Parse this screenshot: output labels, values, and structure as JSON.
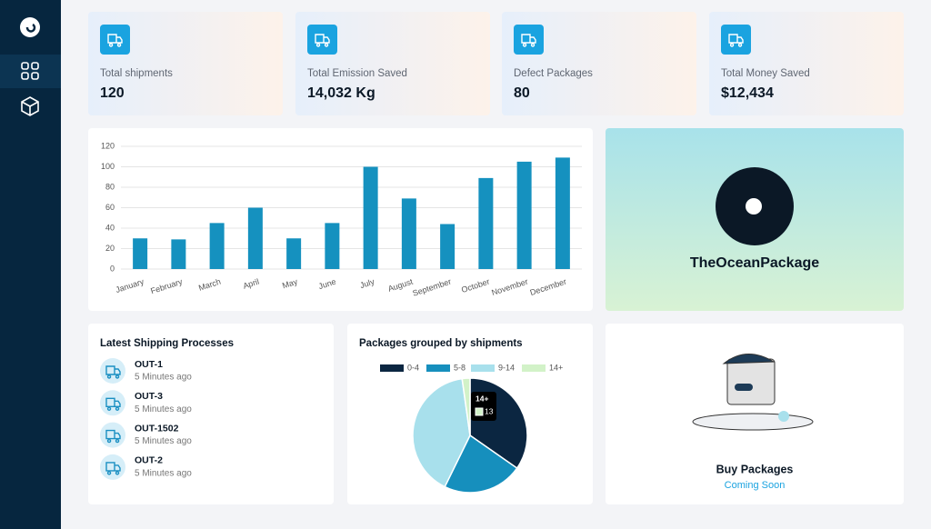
{
  "stats": [
    {
      "label": "Total shipments",
      "value": "120"
    },
    {
      "label": "Total Emission Saved",
      "value": "14,032 Kg"
    },
    {
      "label": "Defect Packages",
      "value": "80"
    },
    {
      "label": "Total Money Saved",
      "value": "$12,434"
    }
  ],
  "chart_data": [
    {
      "type": "bar",
      "categories": [
        "January",
        "February",
        "March",
        "April",
        "May",
        "June",
        "July",
        "August",
        "September",
        "October",
        "November",
        "December"
      ],
      "values": [
        30,
        29,
        45,
        60,
        30,
        45,
        100,
        69,
        44,
        89,
        105,
        109
      ],
      "color": "#1591bf",
      "ylim": [
        0,
        120
      ],
      "yticks": [
        0,
        20,
        40,
        60,
        80,
        100,
        120
      ],
      "grid": true
    },
    {
      "type": "pie",
      "title": "Packages grouped by shipments",
      "categories": [
        "0-4",
        "5-8",
        "9-14",
        "14+"
      ],
      "values": [
        203,
        132,
        237,
        13
      ],
      "colors": [
        "#0b2641",
        "#168fbd",
        "#a8e0ec",
        "#d2f2c8"
      ],
      "legend": "top"
    }
  ],
  "brand": {
    "name": "TheOceanPackage"
  },
  "shipping": {
    "title": "Latest Shipping Processes",
    "items": [
      {
        "id": "OUT-1",
        "time": "5 Minutes ago"
      },
      {
        "id": "OUT-3",
        "time": "5 Minutes ago"
      },
      {
        "id": "OUT-1502",
        "time": "5 Minutes ago"
      },
      {
        "id": "OUT-2",
        "time": "5 Minutes ago"
      }
    ]
  },
  "buy": {
    "title": "Buy Packages",
    "status": "Coming Soon"
  }
}
